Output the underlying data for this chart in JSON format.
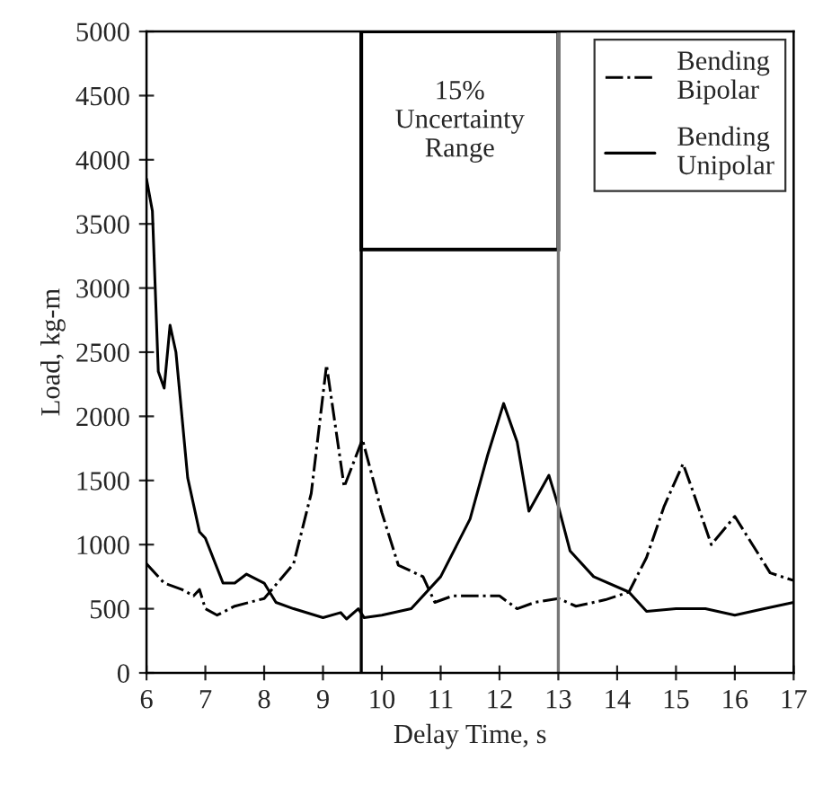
{
  "chart_data": {
    "type": "line",
    "xlabel": "Delay Time, s",
    "ylabel": "Load, kg-m",
    "xlim": [
      6,
      17
    ],
    "xticks": [
      6,
      7,
      8,
      9,
      10,
      11,
      12,
      13,
      14,
      15,
      16,
      17
    ],
    "ylim": [
      0,
      5000
    ],
    "yticks": [
      0,
      500,
      1000,
      1500,
      2000,
      2500,
      3000,
      3500,
      4000,
      4500,
      5000
    ],
    "grid": false,
    "legend": "top right",
    "marker": "none",
    "ref_lines": [
      {
        "axis": "x",
        "value": 9.65,
        "color": "#000000"
      },
      {
        "axis": "x",
        "value": 13.0,
        "color": "#777777"
      }
    ],
    "annotations": [
      "15%\nUncertainty\nRange"
    ],
    "series": [
      {
        "name": "Bending\nBipolar",
        "color": "#000000",
        "line_style": "dashdot",
        "x": [
          6,
          6.3,
          6.6,
          6.8,
          6.9,
          7.0,
          7.2,
          7.5,
          8.0,
          8.5,
          8.8,
          9.06,
          9.36,
          9.67,
          10.0,
          10.28,
          10.7,
          10.9,
          11.2,
          12.0,
          12.3,
          12.6,
          13.0,
          13.3,
          13.8,
          14.2,
          14.5,
          14.8,
          15.12,
          15.3,
          15.6,
          16.0,
          16.3,
          16.6,
          17
        ],
        "values": [
          850,
          700,
          650,
          600,
          650,
          500,
          450,
          520,
          580,
          850,
          1400,
          2400,
          1450,
          1820,
          1250,
          840,
          750,
          550,
          600,
          600,
          500,
          550,
          580,
          520,
          570,
          630,
          900,
          1300,
          1630,
          1400,
          1000,
          1220,
          1000,
          780,
          720
        ]
      },
      {
        "name": "Bending\nUnipolar",
        "color": "#000000",
        "line_style": "solid",
        "x": [
          6,
          6.1,
          6.2,
          6.3,
          6.4,
          6.5,
          6.7,
          6.9,
          7.0,
          7.3,
          7.5,
          7.7,
          8.0,
          8.2,
          8.5,
          9.0,
          9.3,
          9.4,
          9.6,
          9.7,
          10.0,
          10.5,
          11.0,
          11.5,
          11.8,
          12.07,
          12.3,
          12.5,
          12.84,
          13.0,
          13.2,
          13.6,
          14.2,
          14.5,
          15,
          15.5,
          16,
          16.5,
          17
        ],
        "values": [
          3850,
          3600,
          2350,
          2220,
          2710,
          2500,
          1520,
          1100,
          1050,
          700,
          700,
          770,
          700,
          550,
          500,
          430,
          470,
          420,
          500,
          430,
          450,
          500,
          750,
          1200,
          1700,
          2100,
          1800,
          1260,
          1540,
          1300,
          950,
          750,
          630,
          480,
          500,
          500,
          450,
          500,
          550
        ]
      }
    ]
  }
}
